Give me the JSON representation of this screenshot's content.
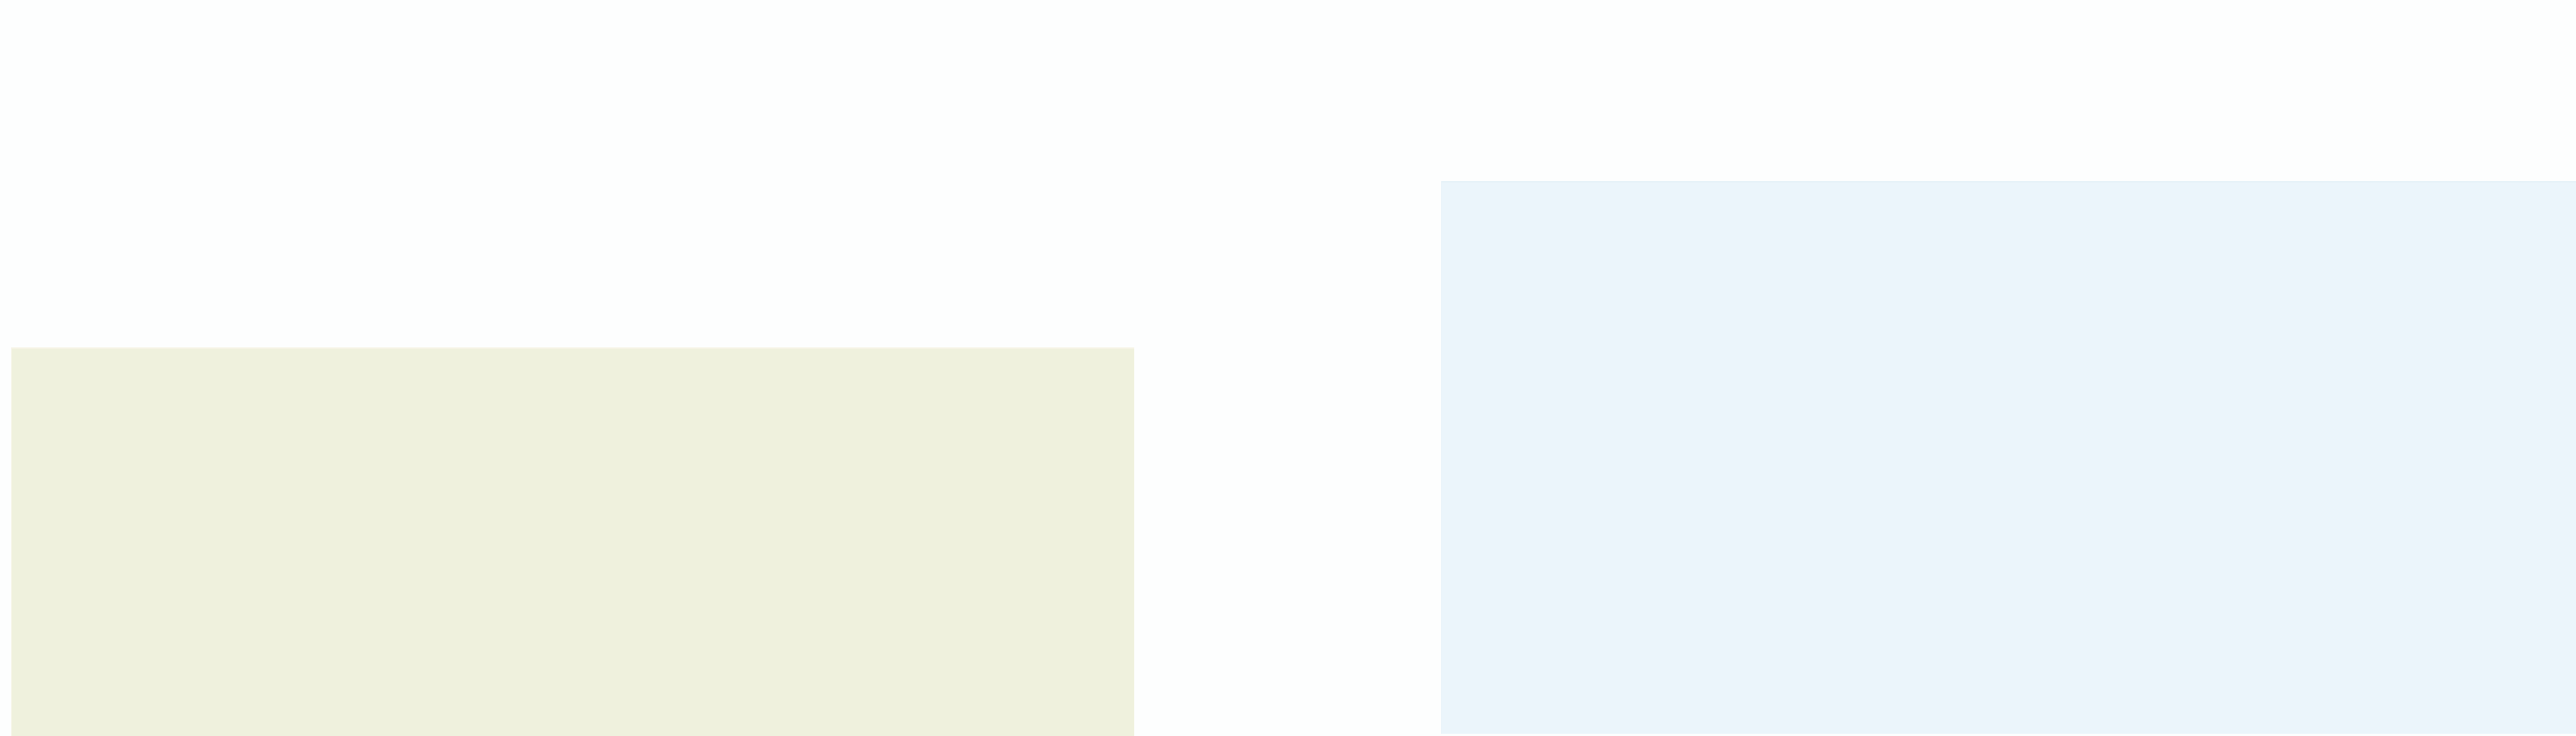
{
  "colors": {
    "background": "#fdfefe",
    "left_panel_fill": "#eff1dd",
    "right_panel_fill": "#ebf5fb"
  },
  "panels": [
    {
      "name": "left-panel",
      "text": ""
    },
    {
      "name": "right-panel",
      "text": ""
    }
  ]
}
